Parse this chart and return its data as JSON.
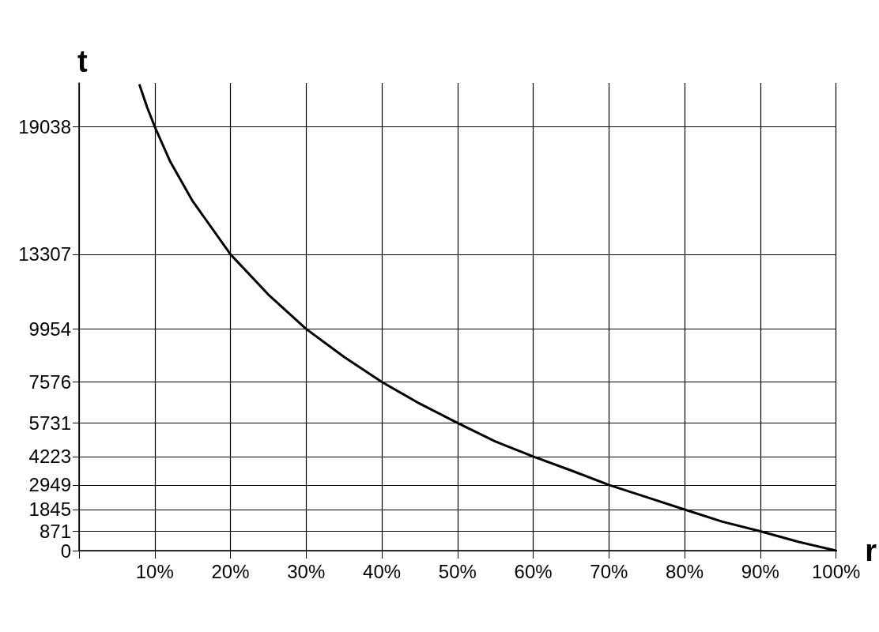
{
  "chart_data": {
    "type": "line",
    "xlabel": "r",
    "ylabel": "t",
    "x": [
      8,
      9,
      10,
      12,
      15,
      20,
      25,
      30,
      35,
      40,
      45,
      50,
      55,
      60,
      65,
      70,
      75,
      80,
      85,
      90,
      95,
      100
    ],
    "series": [
      {
        "color": "#000000",
        "values": [
          20900,
          19900,
          19038,
          17500,
          15700,
          13307,
          11500,
          9954,
          8700,
          7576,
          6600,
          5731,
          4900,
          4223,
          3600,
          2949,
          2400,
          1845,
          1300,
          871,
          400,
          0
        ]
      }
    ],
    "xlim": [
      0,
      100
    ],
    "xticks": [
      {
        "value": 0,
        "label": null
      },
      {
        "value": 10,
        "label": "10%"
      },
      {
        "value": 20,
        "label": "20%"
      },
      {
        "value": 30,
        "label": "30%"
      },
      {
        "value": 40,
        "label": "40%"
      },
      {
        "value": 50,
        "label": "50%"
      },
      {
        "value": 60,
        "label": "60%"
      },
      {
        "value": 70,
        "label": "70%"
      },
      {
        "value": 80,
        "label": "80%"
      },
      {
        "value": 90,
        "label": "90%"
      },
      {
        "value": 100,
        "label": "100%"
      }
    ],
    "ylim": [
      0,
      21000
    ],
    "yticks": [
      0,
      871,
      1845,
      2949,
      4223,
      5731,
      7576,
      9954,
      13307,
      19038
    ],
    "grid": true,
    "marker": "none",
    "line_style": "solid"
  }
}
